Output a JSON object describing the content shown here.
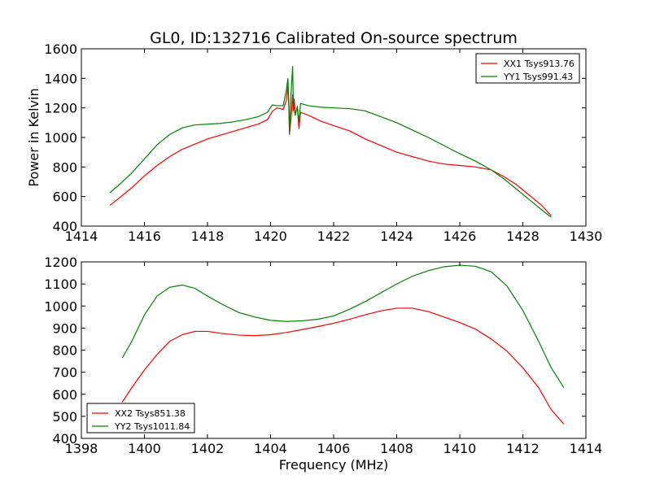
{
  "chart_data": [
    {
      "type": "line",
      "title": "GL0, ID:132716 Calibrated On-source spectrum",
      "xlabel": "",
      "ylabel": "Power in Kelvin",
      "xlim": [
        1414,
        1430
      ],
      "ylim": [
        400,
        1600
      ],
      "xticks": [
        1414,
        1416,
        1418,
        1420,
        1422,
        1424,
        1426,
        1428,
        1430
      ],
      "yticks": [
        400,
        600,
        800,
        1000,
        1200,
        1400,
        1600
      ],
      "legend_position": "top-right",
      "grid": false,
      "series": [
        {
          "name": "XX1 Tsys913.76",
          "color": "#ff0000",
          "points": [
            [
              1414.9,
              540
            ],
            [
              1415.2,
              590
            ],
            [
              1415.6,
              660
            ],
            [
              1416.0,
              740
            ],
            [
              1416.4,
              810
            ],
            [
              1416.8,
              870
            ],
            [
              1417.2,
              920
            ],
            [
              1417.6,
              955
            ],
            [
              1418.0,
              990
            ],
            [
              1418.4,
              1015
            ],
            [
              1418.8,
              1040
            ],
            [
              1419.2,
              1065
            ],
            [
              1419.6,
              1090
            ],
            [
              1419.9,
              1120
            ],
            [
              1420.05,
              1175
            ],
            [
              1420.2,
              1200
            ],
            [
              1420.4,
              1190
            ],
            [
              1420.5,
              1250
            ],
            [
              1420.55,
              1350
            ],
            [
              1420.58,
              1200
            ],
            [
              1420.6,
              1020
            ],
            [
              1420.65,
              1130
            ],
            [
              1420.7,
              1290
            ],
            [
              1420.72,
              1180
            ],
            [
              1420.75,
              1260
            ],
            [
              1420.78,
              1160
            ],
            [
              1420.85,
              1200
            ],
            [
              1420.9,
              1060
            ],
            [
              1420.95,
              1170
            ],
            [
              1421.2,
              1150
            ],
            [
              1421.6,
              1110
            ],
            [
              1422.0,
              1080
            ],
            [
              1422.5,
              1045
            ],
            [
              1423.0,
              990
            ],
            [
              1423.5,
              945
            ],
            [
              1424.0,
              900
            ],
            [
              1424.5,
              870
            ],
            [
              1425.0,
              840
            ],
            [
              1425.5,
              820
            ],
            [
              1426.0,
              810
            ],
            [
              1426.5,
              800
            ],
            [
              1427.0,
              780
            ],
            [
              1427.4,
              735
            ],
            [
              1427.8,
              680
            ],
            [
              1428.2,
              610
            ],
            [
              1428.6,
              540
            ],
            [
              1428.9,
              470
            ]
          ]
        },
        {
          "name": "YY1 Tsys991.43",
          "color": "#008000",
          "points": [
            [
              1414.9,
              625
            ],
            [
              1415.2,
              680
            ],
            [
              1415.6,
              760
            ],
            [
              1416.0,
              855
            ],
            [
              1416.4,
              950
            ],
            [
              1416.8,
              1020
            ],
            [
              1417.2,
              1065
            ],
            [
              1417.6,
              1085
            ],
            [
              1418.0,
              1090
            ],
            [
              1418.4,
              1095
            ],
            [
              1418.8,
              1105
            ],
            [
              1419.2,
              1120
            ],
            [
              1419.6,
              1140
            ],
            [
              1419.9,
              1170
            ],
            [
              1420.05,
              1220
            ],
            [
              1420.2,
              1215
            ],
            [
              1420.4,
              1215
            ],
            [
              1420.5,
              1320
            ],
            [
              1420.55,
              1400
            ],
            [
              1420.58,
              1230
            ],
            [
              1420.6,
              1030
            ],
            [
              1420.65,
              1300
            ],
            [
              1420.7,
              1480
            ],
            [
              1420.72,
              1250
            ],
            [
              1420.78,
              1150
            ],
            [
              1420.85,
              1210
            ],
            [
              1420.9,
              1100
            ],
            [
              1420.95,
              1230
            ],
            [
              1421.2,
              1215
            ],
            [
              1421.6,
              1205
            ],
            [
              1422.0,
              1200
            ],
            [
              1422.5,
              1195
            ],
            [
              1423.0,
              1180
            ],
            [
              1423.5,
              1140
            ],
            [
              1424.0,
              1100
            ],
            [
              1424.5,
              1050
            ],
            [
              1425.0,
              1000
            ],
            [
              1425.5,
              945
            ],
            [
              1426.0,
              890
            ],
            [
              1426.5,
              840
            ],
            [
              1427.0,
              780
            ],
            [
              1427.4,
              720
            ],
            [
              1427.8,
              650
            ],
            [
              1428.2,
              580
            ],
            [
              1428.6,
              510
            ],
            [
              1428.9,
              460
            ]
          ]
        }
      ]
    },
    {
      "type": "line",
      "title": "",
      "xlabel": "Frequency (MHz)",
      "ylabel": "",
      "xlim": [
        1398,
        1414
      ],
      "ylim": [
        400,
        1200
      ],
      "xticks": [
        1398,
        1400,
        1402,
        1404,
        1406,
        1408,
        1410,
        1412,
        1414
      ],
      "yticks": [
        400,
        500,
        600,
        700,
        800,
        900,
        1000,
        1100,
        1200
      ],
      "legend_position": "bottom-left",
      "grid": false,
      "series": [
        {
          "name": "XX2 Tsys851.38",
          "color": "#ff0000",
          "points": [
            [
              1399.3,
              565
            ],
            [
              1399.6,
              630
            ],
            [
              1400.0,
              710
            ],
            [
              1400.4,
              780
            ],
            [
              1400.8,
              840
            ],
            [
              1401.2,
              870
            ],
            [
              1401.6,
              885
            ],
            [
              1402.0,
              885
            ],
            [
              1402.5,
              875
            ],
            [
              1403.0,
              868
            ],
            [
              1403.5,
              866
            ],
            [
              1404.0,
              870
            ],
            [
              1404.5,
              880
            ],
            [
              1405.0,
              893
            ],
            [
              1405.5,
              907
            ],
            [
              1406.0,
              922
            ],
            [
              1406.5,
              940
            ],
            [
              1407.0,
              960
            ],
            [
              1407.5,
              978
            ],
            [
              1408.0,
              990
            ],
            [
              1408.5,
              990
            ],
            [
              1409.0,
              975
            ],
            [
              1409.5,
              950
            ],
            [
              1410.0,
              925
            ],
            [
              1410.5,
              895
            ],
            [
              1411.0,
              850
            ],
            [
              1411.5,
              795
            ],
            [
              1412.0,
              720
            ],
            [
              1412.5,
              630
            ],
            [
              1412.9,
              530
            ],
            [
              1413.3,
              465
            ]
          ]
        },
        {
          "name": "YY2 Tsys1011.84",
          "color": "#008000",
          "points": [
            [
              1399.3,
              765
            ],
            [
              1399.6,
              840
            ],
            [
              1400.0,
              960
            ],
            [
              1400.4,
              1045
            ],
            [
              1400.8,
              1085
            ],
            [
              1401.2,
              1095
            ],
            [
              1401.6,
              1080
            ],
            [
              1402.0,
              1045
            ],
            [
              1402.5,
              1005
            ],
            [
              1403.0,
              970
            ],
            [
              1403.5,
              950
            ],
            [
              1404.0,
              935
            ],
            [
              1404.5,
              930
            ],
            [
              1405.0,
              933
            ],
            [
              1405.5,
              940
            ],
            [
              1406.0,
              955
            ],
            [
              1406.5,
              985
            ],
            [
              1407.0,
              1020
            ],
            [
              1407.5,
              1060
            ],
            [
              1408.0,
              1100
            ],
            [
              1408.5,
              1135
            ],
            [
              1409.0,
              1160
            ],
            [
              1409.5,
              1178
            ],
            [
              1410.0,
              1185
            ],
            [
              1410.5,
              1180
            ],
            [
              1411.0,
              1155
            ],
            [
              1411.5,
              1090
            ],
            [
              1412.0,
              980
            ],
            [
              1412.5,
              840
            ],
            [
              1412.9,
              720
            ],
            [
              1413.3,
              630
            ]
          ]
        }
      ]
    }
  ]
}
